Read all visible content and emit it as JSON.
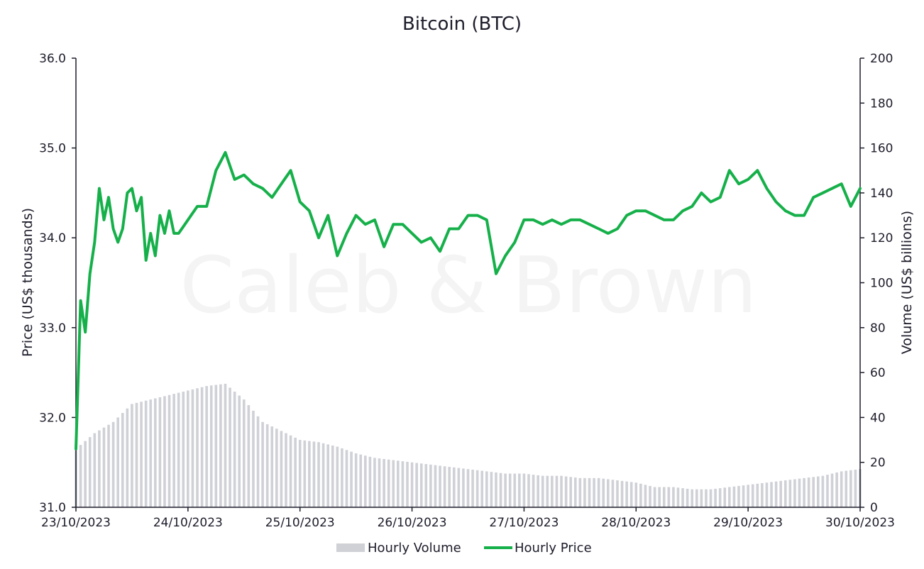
{
  "chart_data": {
    "type": "line",
    "title": "Bitcoin (BTC)",
    "watermark": "Caleb & Brown",
    "colors": {
      "price_line": "#16b04a",
      "volume_bar": "#cfd1d6",
      "axis": "#1d1d2b",
      "text": "#1d1d2b"
    },
    "x_axis": {
      "tick_labels": [
        "23/10/2023",
        "24/10/2023",
        "25/10/2023",
        "26/10/2023",
        "27/10/2023",
        "28/10/2023",
        "29/10/2023",
        "30/10/2023"
      ]
    },
    "y_left": {
      "label": "Price (US$ thousands)",
      "ylim": [
        31.0,
        36.0
      ],
      "ticks": [
        "31.0",
        "32.0",
        "33.0",
        "34.0",
        "35.0",
        "36.0"
      ]
    },
    "y_right": {
      "label": "Volume (US$ billions)",
      "ylim": [
        0,
        200
      ],
      "ticks": [
        "0",
        "20",
        "40",
        "60",
        "80",
        "100",
        "120",
        "140",
        "160",
        "180",
        "200"
      ]
    },
    "legend": {
      "placement": "bottom-center",
      "items": [
        "Hourly Volume",
        "Hourly Price"
      ]
    },
    "grid": false,
    "series": [
      {
        "name": "Hourly Price",
        "axis": "left",
        "style": "line",
        "hours": [
          0,
          1,
          2,
          3,
          4,
          5,
          6,
          7,
          8,
          9,
          10,
          11,
          12,
          13,
          14,
          15,
          16,
          17,
          18,
          19,
          20,
          21,
          22,
          24,
          26,
          28,
          30,
          32,
          34,
          36,
          38,
          40,
          42,
          44,
          46,
          48,
          50,
          52,
          54,
          56,
          58,
          60,
          62,
          64,
          66,
          68,
          70,
          72,
          74,
          76,
          78,
          80,
          82,
          84,
          86,
          88,
          90,
          92,
          94,
          96,
          98,
          100,
          102,
          104,
          106,
          108,
          110,
          112,
          114,
          116,
          118,
          120,
          122,
          124,
          126,
          128,
          130,
          132,
          134,
          136,
          138,
          140,
          142,
          144,
          146,
          148,
          150,
          152,
          154,
          156,
          158,
          160,
          162,
          164,
          166,
          168
        ],
        "values": [
          31.65,
          33.3,
          32.95,
          33.6,
          33.95,
          34.55,
          34.2,
          34.45,
          34.1,
          33.95,
          34.1,
          34.5,
          34.55,
          34.3,
          34.45,
          33.75,
          34.05,
          33.8,
          34.25,
          34.05,
          34.3,
          34.05,
          34.05,
          34.2,
          34.35,
          34.35,
          34.75,
          34.95,
          34.65,
          34.7,
          34.6,
          34.55,
          34.45,
          34.6,
          34.75,
          34.4,
          34.3,
          34.0,
          34.25,
          33.8,
          34.05,
          34.25,
          34.15,
          34.2,
          33.9,
          34.15,
          34.15,
          34.05,
          33.95,
          34.0,
          33.85,
          34.1,
          34.1,
          34.25,
          34.25,
          34.2,
          33.6,
          33.8,
          33.95,
          34.2,
          34.2,
          34.15,
          34.2,
          34.15,
          34.2,
          34.2,
          34.15,
          34.1,
          34.05,
          34.1,
          34.25,
          34.3,
          34.3,
          34.25,
          34.2,
          34.2,
          34.3,
          34.35,
          34.5,
          34.4,
          34.45,
          34.75,
          34.6,
          34.65,
          34.75,
          34.55,
          34.4,
          34.3,
          34.25,
          34.25,
          34.45,
          34.5,
          34.55,
          34.6,
          34.35,
          34.55
        ],
        "color": "#16b04a"
      },
      {
        "name": "Hourly Volume",
        "axis": "right",
        "style": "bar",
        "hours": [
          0,
          4,
          8,
          12,
          16,
          20,
          24,
          28,
          32,
          36,
          40,
          44,
          48,
          52,
          56,
          60,
          64,
          68,
          72,
          76,
          80,
          84,
          88,
          92,
          96,
          100,
          104,
          108,
          112,
          116,
          120,
          124,
          128,
          132,
          136,
          140,
          144,
          148,
          152,
          156,
          160,
          164,
          168
        ],
        "values": [
          26,
          33,
          38,
          46,
          48,
          50,
          52,
          54,
          55,
          48,
          38,
          34,
          30,
          29,
          27,
          24,
          22,
          21,
          20,
          19,
          18,
          17,
          16,
          15,
          15,
          14,
          14,
          13,
          13,
          12,
          11,
          9,
          9,
          8,
          8,
          9,
          10,
          11,
          12,
          13,
          14,
          16,
          17
        ],
        "color": "#cfd1d6"
      }
    ]
  }
}
